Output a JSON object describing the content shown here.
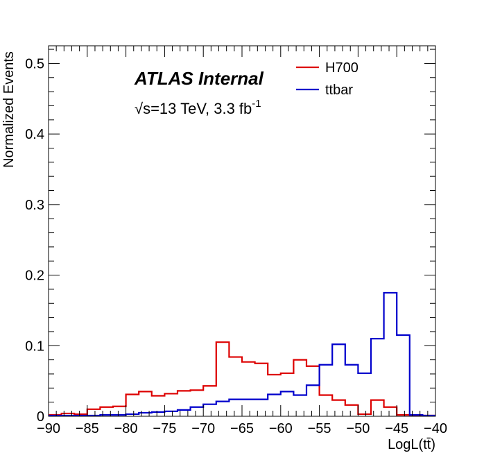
{
  "chart_data": {
    "type": "line",
    "style": "step-histogram",
    "xlabel": "LogL(tt̄)",
    "ylabel": "Normalized Events",
    "xlim": [
      -90,
      -40
    ],
    "ylim": [
      0,
      0.525
    ],
    "x_ticks": [
      -90,
      -85,
      -80,
      -75,
      -70,
      -65,
      -60,
      -55,
      -50,
      -45,
      -40
    ],
    "x_tick_labels": [
      "−90",
      "−85",
      "−80",
      "−75",
      "−70",
      "−65",
      "−60",
      "−55",
      "−50",
      "−45",
      "−40"
    ],
    "y_ticks": [
      0,
      0.1,
      0.2,
      0.3,
      0.4,
      0.5
    ],
    "y_tick_labels": [
      "0",
      "0.1",
      "0.2",
      "0.3",
      "0.4",
      "0.5"
    ],
    "bin_width": 1.6667,
    "bin_low_edges": [
      -90,
      -88.333,
      -86.667,
      -85,
      -83.333,
      -81.667,
      -80,
      -78.333,
      -76.667,
      -75,
      -73.333,
      -71.667,
      -70,
      -68.333,
      -66.667,
      -65,
      -63.333,
      -61.667,
      -60,
      -58.333,
      -56.667,
      -55,
      -53.333,
      -51.667,
      -50,
      -48.333,
      -46.667,
      -45,
      -43.333,
      -41.667
    ],
    "series": [
      {
        "name": "H700",
        "color": "#dd0000",
        "values": [
          0.002,
          0.004,
          0.003,
          0.01,
          0.013,
          0.014,
          0.031,
          0.035,
          0.029,
          0.032,
          0.036,
          0.037,
          0.043,
          0.105,
          0.084,
          0.077,
          0.075,
          0.059,
          0.061,
          0.08,
          0.071,
          0.03,
          0.023,
          0.016,
          0.003,
          0.023,
          0.013,
          0.002,
          0.001,
          0.001
        ]
      },
      {
        "name": "ttbar",
        "color": "#0000cc",
        "values": [
          0.001,
          0.001,
          0.001,
          0.001,
          0.002,
          0.002,
          0.003,
          0.005,
          0.006,
          0.007,
          0.009,
          0.013,
          0.017,
          0.021,
          0.024,
          0.024,
          0.024,
          0.031,
          0.035,
          0.03,
          0.044,
          0.073,
          0.102,
          0.073,
          0.061,
          0.11,
          0.175,
          0.115,
          0.002,
          0.001
        ]
      }
    ],
    "legend_position": "top-right",
    "annotations": {
      "experiment": "ATLAS Internal",
      "energy_prefix": "√s=13 TeV, 3.3 fb",
      "energy_superscript": "-1"
    }
  }
}
